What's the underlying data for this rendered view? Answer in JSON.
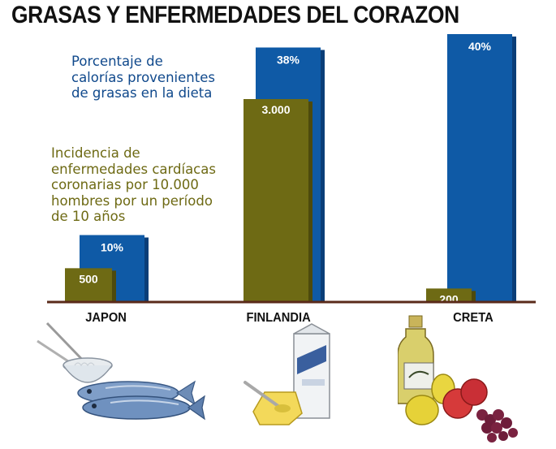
{
  "title": "GRASAS Y ENFERMEDADES DEL CORAZON",
  "legend": {
    "fat_lines": [
      "Porcentaje de",
      "calorías provenientes",
      "de grasas en la dieta"
    ],
    "incidence_lines": [
      "Incidencia de",
      "enfermedades cardíacas",
      "coronarias por 10.000",
      "hombres por un período",
      "de 10 años"
    ]
  },
  "colors": {
    "fat": "#0f5aa6",
    "fat_shadow": "#0a3e78",
    "incidence": "#6e6a14",
    "incidence_shadow": "#4d4a0c",
    "fat_text": "#10498c",
    "incidence_text": "#6e6a14",
    "baseline": "#5a2a1a"
  },
  "chart_data": {
    "type": "bar",
    "categories": [
      "JAPON",
      "FINLANDIA",
      "CRETA"
    ],
    "series": [
      {
        "name": "Porcentaje de calorías provenientes de grasas en la dieta",
        "key": "fat",
        "values": [
          10,
          38,
          40
        ],
        "labels": [
          "10%",
          "38%",
          "40%"
        ]
      },
      {
        "name": "Incidencia de enfermedades cardíacas coronarias por 10.000 hombres por un período de 10 años",
        "key": "incidence",
        "values": [
          500,
          3000,
          200
        ],
        "labels": [
          "500",
          "3.000",
          "200"
        ]
      }
    ]
  },
  "illustrations": [
    "fish-and-rice-illustration",
    "milk-and-butter-illustration",
    "olive-oil-and-fruit-illustration"
  ]
}
